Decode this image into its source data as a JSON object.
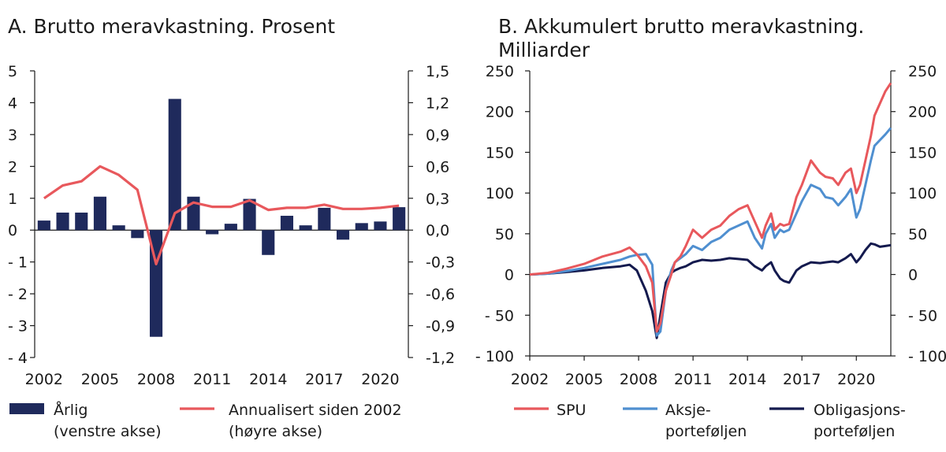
{
  "chart_data": [
    {
      "type": "bar",
      "title": "A. Brutto meravkastning. Prosent",
      "x": [
        2002,
        2003,
        2004,
        2005,
        2006,
        2007,
        2008,
        2009,
        2010,
        2011,
        2012,
        2013,
        2014,
        2015,
        2016,
        2017,
        2018,
        2019,
        2020,
        2021
      ],
      "x_tick_labels": [
        "2002",
        "2005",
        "2008",
        "2011",
        "2014",
        "2017",
        "2020"
      ],
      "x_ticks": [
        2002,
        2005,
        2008,
        2011,
        2014,
        2017,
        2020
      ],
      "left_axis": {
        "ylim": [
          -4,
          5
        ],
        "ticks": [
          -4,
          -3,
          -2,
          -1,
          0,
          1,
          2,
          3,
          4,
          5
        ],
        "tick_labels": [
          "- 4",
          "- 3",
          "- 2",
          "- 1",
          "0",
          "1",
          "2",
          "3",
          "4",
          "5"
        ]
      },
      "right_axis": {
        "ylim": [
          -1.2,
          1.5
        ],
        "ticks": [
          -1.2,
          -0.9,
          -0.6,
          -0.3,
          0,
          0.3,
          0.6,
          0.9,
          1.2,
          1.5
        ],
        "tick_labels": [
          "-1,2",
          "-0,9",
          "-0,6",
          "-0,3",
          "0,0",
          "0,3",
          "0,6",
          "0,9",
          "1,2",
          "1,5"
        ]
      },
      "series": [
        {
          "name": "Årlig (venstre akse)",
          "legend_lines": [
            "Årlig",
            "(venstre akse)"
          ],
          "axis": "left",
          "kind": "bar",
          "color": "#1f2a5c",
          "values": [
            0.3,
            0.55,
            0.55,
            1.05,
            0.15,
            -0.25,
            -3.35,
            4.12,
            1.05,
            -0.13,
            0.2,
            0.98,
            -0.78,
            0.45,
            0.15,
            0.7,
            -0.3,
            0.22,
            0.27,
            0.72
          ]
        },
        {
          "name": "Annualisert siden 2002 (høyre akse)",
          "legend_lines": [
            "Annualisert siden 2002",
            "(høyre akse)"
          ],
          "axis": "right",
          "kind": "line",
          "color": "#e8585c",
          "values": [
            0.3,
            0.42,
            0.46,
            0.6,
            0.52,
            0.38,
            -0.32,
            0.16,
            0.26,
            0.22,
            0.22,
            0.28,
            0.19,
            0.21,
            0.21,
            0.24,
            0.2,
            0.2,
            0.21,
            0.23
          ]
        }
      ]
    },
    {
      "type": "line",
      "title": "B. Akkumulert brutto meravkastning. Milliarder",
      "title_lines": [
        "B. Akkumulert brutto meravkastning.",
        "Milliarder"
      ],
      "x_tick_labels": [
        "2002",
        "2005",
        "2008",
        "2011",
        "2014",
        "2017",
        "2020"
      ],
      "x_ticks": [
        2002,
        2005,
        2008,
        2011,
        2014,
        2017,
        2020
      ],
      "xlim": [
        2002,
        2021.9
      ],
      "ylim": [
        -100,
        250
      ],
      "y_ticks": [
        -100,
        -50,
        0,
        50,
        100,
        150,
        200,
        250
      ],
      "y_tick_labels": [
        "- 100",
        "- 50",
        "0",
        "50",
        "100",
        "150",
        "200",
        "250"
      ],
      "x": [
        2002,
        2003,
        2004,
        2005,
        2006,
        2007,
        2007.5,
        2007.9,
        2008.4,
        2008.75,
        2009,
        2009.2,
        2009.5,
        2009.8,
        2010,
        2010.3,
        2010.6,
        2011,
        2011.5,
        2012,
        2012.5,
        2013,
        2013.5,
        2014,
        2014.4,
        2014.8,
        2015,
        2015.3,
        2015.5,
        2015.8,
        2016,
        2016.3,
        2016.7,
        2017,
        2017.5,
        2018,
        2018.3,
        2018.7,
        2019,
        2019.4,
        2019.7,
        2020,
        2020.2,
        2020.5,
        2020.8,
        2021,
        2021.3,
        2021.6,
        2021.9
      ],
      "series": [
        {
          "name": "SPU",
          "legend_lines": [
            "SPU"
          ],
          "color": "#e8585c",
          "values": [
            0,
            2,
            7,
            13,
            22,
            28,
            33,
            25,
            10,
            -10,
            -70,
            -60,
            -20,
            0,
            15,
            22,
            35,
            55,
            45,
            55,
            60,
            72,
            80,
            85,
            65,
            45,
            60,
            75,
            55,
            62,
            60,
            62,
            95,
            110,
            140,
            125,
            120,
            118,
            110,
            125,
            130,
            100,
            110,
            140,
            170,
            195,
            210,
            225,
            235
          ]
        },
        {
          "name": "Aksjeporteføljen",
          "legend_lines": [
            "Aksje-",
            "porteføljen"
          ],
          "color": "#4f8fd0",
          "values": [
            0,
            1,
            4,
            8,
            13,
            18,
            22,
            24,
            25,
            12,
            -75,
            -70,
            -20,
            5,
            15,
            20,
            25,
            35,
            30,
            40,
            45,
            55,
            60,
            65,
            45,
            32,
            50,
            62,
            45,
            55,
            52,
            55,
            75,
            90,
            110,
            105,
            95,
            93,
            85,
            95,
            105,
            70,
            80,
            110,
            140,
            158,
            165,
            172,
            180
          ]
        },
        {
          "name": "Obligasjonsporteføljen",
          "legend_lines": [
            "Obligasjons-",
            "porteføljen"
          ],
          "color": "#141a4e",
          "values": [
            0,
            1,
            3,
            5,
            8,
            10,
            12,
            5,
            -20,
            -45,
            -78,
            -50,
            -10,
            2,
            5,
            8,
            10,
            15,
            18,
            17,
            18,
            20,
            19,
            18,
            10,
            5,
            10,
            15,
            5,
            -5,
            -8,
            -10,
            5,
            10,
            15,
            14,
            15,
            16,
            15,
            20,
            25,
            15,
            20,
            30,
            38,
            37,
            34,
            35,
            36
          ]
        }
      ]
    }
  ]
}
